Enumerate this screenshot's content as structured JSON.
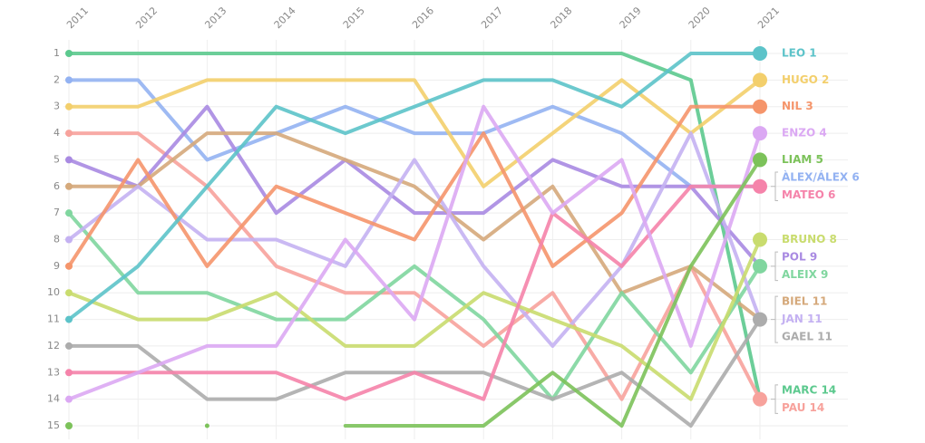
{
  "chart_data": {
    "type": "bump",
    "categories": [
      "2011",
      "2012",
      "2013",
      "2014",
      "2015",
      "2016",
      "2017",
      "2018",
      "2019",
      "2020",
      "2021"
    ],
    "ylim": [
      1,
      15
    ],
    "y_inverted": true,
    "yticks": [
      1,
      2,
      3,
      4,
      5,
      6,
      7,
      8,
      9,
      10,
      11,
      12,
      13,
      14,
      15
    ],
    "grid": true,
    "series": [
      {
        "name": "MARC",
        "end_label": "MARC 14",
        "color": "#5cc98e",
        "values": [
          1,
          1,
          1,
          1,
          1,
          1,
          1,
          1,
          1,
          2,
          14
        ]
      },
      {
        "name": "ÀLEX",
        "end_label": "ÀLEX/ÁLEX 6",
        "color": "#93b2f2",
        "values": [
          2,
          2,
          5,
          4,
          3,
          4,
          4,
          3,
          4,
          6,
          6
        ]
      },
      {
        "name": "HUGO",
        "end_label": "HUGO 2",
        "color": "#f3cf6c",
        "values": [
          3,
          3,
          2,
          2,
          2,
          2,
          6,
          4,
          2,
          4,
          2
        ]
      },
      {
        "name": "PAU",
        "end_label": "PAU 14",
        "color": "#f7a29c",
        "values": [
          4,
          4,
          6,
          9,
          10,
          10,
          12,
          10,
          14,
          9,
          14
        ]
      },
      {
        "name": "POL",
        "end_label": "POL 9",
        "color": "#a98ae2",
        "values": [
          5,
          6,
          3,
          7,
          5,
          7,
          7,
          5,
          6,
          6,
          9
        ]
      },
      {
        "name": "BIEL",
        "end_label": "BIEL 11",
        "color": "#d5a97b",
        "values": [
          6,
          6,
          4,
          4,
          5,
          6,
          8,
          6,
          10,
          9,
          11
        ]
      },
      {
        "name": "ALEIX",
        "end_label": "ALEIX 9",
        "color": "#80d69f",
        "values": [
          7,
          10,
          10,
          11,
          11,
          9,
          11,
          14,
          10,
          13,
          9
        ]
      },
      {
        "name": "JAN",
        "end_label": "JAN 11",
        "color": "#c4b1f2",
        "values": [
          8,
          6,
          8,
          8,
          9,
          5,
          9,
          12,
          9,
          4,
          11
        ]
      },
      {
        "name": "NIL",
        "end_label": "NIL 3",
        "color": "#f5956b",
        "values": [
          9,
          5,
          9,
          6,
          7,
          8,
          4,
          9,
          7,
          3,
          3
        ]
      },
      {
        "name": "BRUNO",
        "end_label": "BRUNO 8",
        "color": "#c9dc6e",
        "values": [
          10,
          11,
          11,
          10,
          12,
          12,
          10,
          11,
          12,
          14,
          8
        ]
      },
      {
        "name": "LEO",
        "end_label": "LEO 1",
        "color": "#5cc3c9",
        "values": [
          11,
          9,
          6,
          3,
          4,
          3,
          2,
          2,
          3,
          1,
          1
        ]
      },
      {
        "name": "GAEL",
        "end_label": "GAEL 11",
        "color": "#acacac",
        "values": [
          12,
          12,
          14,
          14,
          13,
          13,
          13,
          14,
          13,
          15,
          11
        ]
      },
      {
        "name": "MATEO",
        "end_label": "MATEO 6",
        "color": "#f583aa",
        "values": [
          13,
          13,
          13,
          13,
          14,
          13,
          14,
          7,
          9,
          6,
          6
        ]
      },
      {
        "name": "ENZO",
        "end_label": "ENZO 4",
        "color": "#dba8f3",
        "values": [
          14,
          13,
          12,
          12,
          8,
          11,
          3,
          7,
          5,
          12,
          4
        ]
      },
      {
        "name": "LIAM",
        "end_label": "LIAM 5",
        "color": "#7cc25a",
        "values": [
          15,
          null,
          15,
          null,
          15,
          15,
          15,
          13,
          15,
          9,
          5
        ]
      }
    ]
  }
}
